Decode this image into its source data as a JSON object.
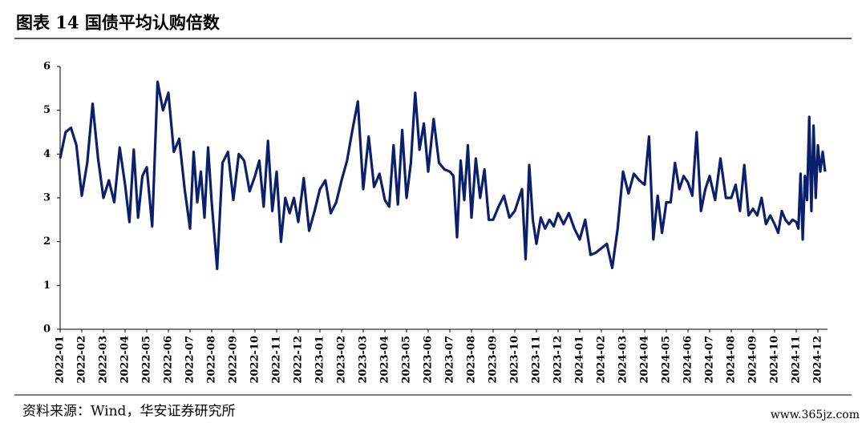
{
  "chart_data": {
    "type": "line",
    "title": "图表 14 国债平均认购倍数",
    "source": "资料来源：Wind，华安证券研究所",
    "watermark": "www.365jz.com",
    "categories": [
      "2022-01",
      null,
      null,
      null,
      "2022-02",
      null,
      null,
      null,
      "2022-03",
      null,
      null,
      null,
      "2022-04",
      null,
      null,
      null,
      null,
      "2022-05",
      null,
      null,
      null,
      "2022-06",
      null,
      null,
      null,
      "2022-07",
      null,
      null,
      null,
      null,
      null,
      "2022-08",
      null,
      null,
      null,
      "2022-09",
      null,
      null,
      null,
      "2022-10",
      null,
      null,
      null,
      null,
      "2022-11",
      null,
      null,
      null,
      null,
      "2022-12",
      null,
      null,
      null,
      "2023-01",
      null,
      null,
      null,
      "2023-02",
      null,
      null,
      null,
      "2023-03",
      null,
      null,
      null,
      "2023-04",
      null,
      null,
      null,
      null,
      "2023-05",
      null,
      null,
      null,
      null,
      "2023-06",
      null,
      null,
      null,
      "2023-07",
      null,
      null,
      null,
      null,
      null,
      "2023-08",
      null,
      null,
      null,
      null,
      "2023-09",
      null,
      null,
      null,
      "2023-10",
      null,
      null,
      null,
      null,
      null,
      "2023-11",
      null,
      null,
      null,
      null,
      "2023-12",
      null,
      null,
      null,
      "2024-01",
      null,
      null,
      null,
      "2024-02",
      null,
      null,
      null,
      "2024-03",
      null,
      null,
      null,
      "2024-04",
      null,
      null,
      null,
      null,
      "2024-05",
      null,
      null,
      null,
      null,
      "2024-06",
      null,
      null,
      null,
      null,
      "2024-07",
      null,
      null,
      null,
      "2024-08",
      null,
      null,
      null,
      null,
      "2024-09",
      null,
      null,
      null,
      null,
      "2024-10",
      null,
      null,
      null,
      null,
      null,
      "2024-11",
      null,
      null,
      null,
      null,
      null,
      null,
      null,
      null,
      null,
      "2024-12",
      null,
      null,
      null
    ],
    "series": [
      {
        "name": "国债平均认购倍数",
        "color": "#0c1f6b",
        "values": [
          3.9,
          4.5,
          4.6,
          4.2,
          3.05,
          3.8,
          5.15,
          3.9,
          3.0,
          3.4,
          2.9,
          4.15,
          3.3,
          2.45,
          4.1,
          2.55,
          3.5,
          3.7,
          2.35,
          5.65,
          5.0,
          5.4,
          4.05,
          4.35,
          3.2,
          2.3,
          4.05,
          2.9,
          3.6,
          2.55,
          4.15,
          2.9,
          1.38,
          3.8,
          4.05,
          2.95,
          4.0,
          3.85,
          3.15,
          3.5,
          3.85,
          2.8,
          4.3,
          2.7,
          3.6,
          2.0,
          3.0,
          2.65,
          3.0,
          2.45,
          3.45,
          2.25,
          2.7,
          3.2,
          3.4,
          2.65,
          2.9,
          3.4,
          3.85,
          4.55,
          5.2,
          3.2,
          4.4,
          3.25,
          3.55,
          2.95,
          2.8,
          4.2,
          2.85,
          4.55,
          3.0,
          3.8,
          5.4,
          4.1,
          4.7,
          3.6,
          4.8,
          3.8,
          3.65,
          3.6,
          3.5,
          2.1,
          3.85,
          2.95,
          4.2,
          2.55,
          3.9,
          3.0,
          3.65,
          2.5,
          2.5,
          2.8,
          3.05,
          2.55,
          2.7,
          2.95,
          3.2,
          1.6,
          3.75,
          2.5,
          1.95,
          2.55,
          2.3,
          2.5,
          2.35,
          2.65,
          2.4,
          2.65,
          2.3,
          2.05,
          2.5,
          1.7,
          1.75,
          1.85,
          1.95,
          1.4,
          2.3,
          3.6,
          3.1,
          3.55,
          3.4,
          3.3,
          4.4,
          2.05,
          3.05,
          2.2,
          2.9,
          2.9,
          3.8,
          3.2,
          3.5,
          3.35,
          3.05,
          4.5,
          2.7,
          3.2,
          3.5,
          2.95,
          3.9,
          3.0,
          3.0,
          3.3,
          2.7,
          3.75,
          2.6,
          2.75,
          2.6,
          3.0,
          2.4,
          2.6,
          2.4,
          2.2,
          2.7,
          2.5,
          2.4,
          2.5,
          2.45,
          2.3,
          3.55,
          2.05,
          3.5,
          2.95,
          4.85,
          2.7,
          4.65,
          3.0,
          4.2,
          3.6,
          4.05,
          3.6
        ]
      }
    ],
    "ylim": [
      0,
      6
    ],
    "yticks": [
      0,
      1,
      2,
      3,
      4,
      5,
      6
    ]
  }
}
